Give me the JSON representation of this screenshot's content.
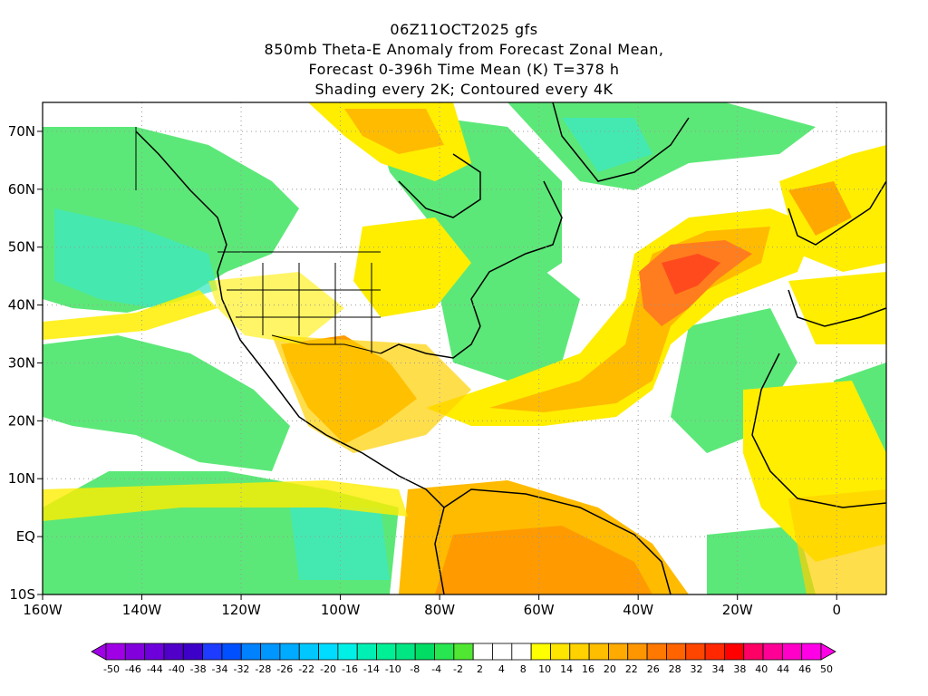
{
  "title": {
    "lines": [
      "06Z11OCT2025 gfs",
      "850mb Theta-E Anomaly from Forecast Zonal Mean,",
      "Forecast 0-396h Time Mean (K) T=378 h",
      "Shading every 2K; Contoured every 4K"
    ]
  },
  "map": {
    "lon_range": [
      -160,
      10
    ],
    "lat_range": [
      -10,
      75
    ],
    "lon_ticks": [
      "160W",
      "140W",
      "120W",
      "100W",
      "80W",
      "60W",
      "40W",
      "20W",
      "0"
    ],
    "lat_ticks": [
      "70N",
      "60N",
      "50N",
      "40N",
      "30N",
      "20N",
      "10N",
      "EQ",
      "10S"
    ]
  },
  "colorbar": {
    "labels": [
      "-50",
      "-46",
      "-44",
      "-40",
      "-38",
      "-34",
      "-32",
      "-28",
      "-26",
      "-22",
      "-20",
      "-16",
      "-14",
      "-10",
      "-8",
      "-4",
      "-2",
      "2",
      "4",
      "8",
      "10",
      "14",
      "16",
      "20",
      "22",
      "26",
      "28",
      "32",
      "34",
      "38",
      "40",
      "44",
      "46",
      "50"
    ],
    "colors": [
      "#a000e6",
      "#8200dc",
      "#6e00dc",
      "#5000c8",
      "#3c00c8",
      "#1e3cff",
      "#0050ff",
      "#0082ff",
      "#0096ff",
      "#00aaff",
      "#00c8ff",
      "#00dcff",
      "#00f0e6",
      "#00f0b4",
      "#00f096",
      "#00e682",
      "#00dc64",
      "#28e650",
      "#50e632",
      "#ffffff",
      "#ffffff",
      "#ffffff",
      "#ffff00",
      "#ffe600",
      "#ffd200",
      "#ffbe00",
      "#ffaa00",
      "#ff9600",
      "#ff7800",
      "#ff6400",
      "#ff4600",
      "#ff2800",
      "#ff0000",
      "#ff0064",
      "#ff0096",
      "#ff00c8",
      "#ff00e6"
    ]
  },
  "colors": {
    "cool": "#66f08c",
    "cool_deep": "#22e8c8",
    "warm": "#ffff00",
    "warm_mid": "#ffcc00",
    "warm_hot": "#ff9600",
    "warm_core": "#ff5a1e"
  }
}
